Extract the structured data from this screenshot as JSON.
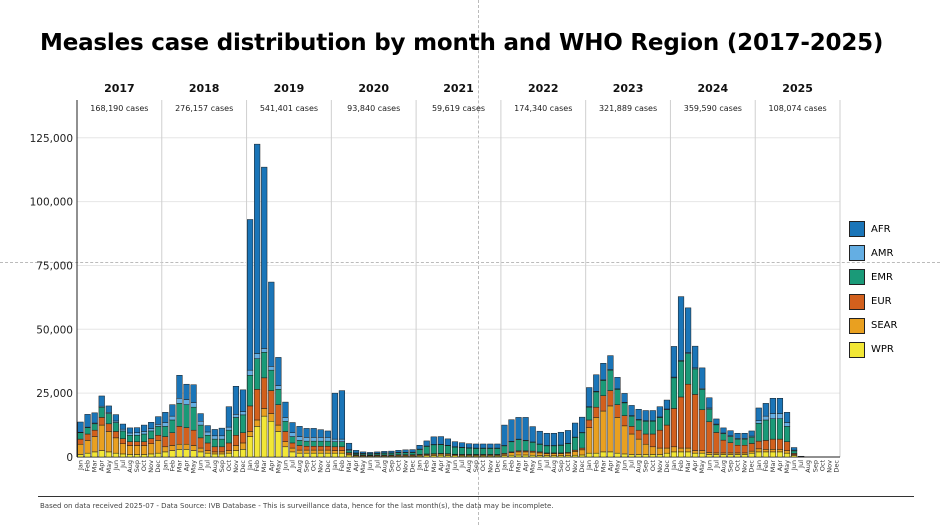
{
  "title": "Measles case distribution by month and WHO Region (2017-2025)",
  "footer": "Based on data received 2025-07 - Data Source: IVB Database - This is surveillance data, hence for the last month(s), the data may be incomplete.",
  "colors": {
    "AFR": "#1a75b8",
    "AMR": "#64aee3",
    "EMR": "#1a9a78",
    "EUR": "#d2601d",
    "SEAR": "#e9a020",
    "WPR": "#f2e736"
  },
  "chart_data": {
    "type": "bar",
    "stacked": true,
    "title": "Measles case distribution by month and WHO Region (2017-2025)",
    "xlabel": "",
    "ylabel": "",
    "ylim": [
      0,
      130000
    ],
    "yticks": [
      0,
      25000,
      50000,
      75000,
      100000,
      125000
    ],
    "ytick_labels": [
      "0",
      "25,000",
      "50,000",
      "75,000",
      "100,000",
      "125,000"
    ],
    "grid": true,
    "legend_position": "right",
    "month_labels": [
      "Jan",
      "Feb",
      "Mar",
      "Apr",
      "May",
      "Jun",
      "Jul",
      "Aug",
      "Sep",
      "Oct",
      "Nov",
      "Dec"
    ],
    "years": [
      {
        "year": "2017",
        "total": "168,190 cases"
      },
      {
        "year": "2018",
        "total": "276,157 cases"
      },
      {
        "year": "2019",
        "total": "541,401 cases"
      },
      {
        "year": "2020",
        "total": "93,840 cases"
      },
      {
        "year": "2021",
        "total": "59,619 cases"
      },
      {
        "year": "2022",
        "total": "174,340 cases"
      },
      {
        "year": "2023",
        "total": "321,889 cases"
      },
      {
        "year": "2024",
        "total": "359,590 cases"
      },
      {
        "year": "2025",
        "total": "108,074 cases"
      }
    ],
    "series_order": [
      "WPR",
      "SEAR",
      "EUR",
      "EMR",
      "AMR",
      "AFR"
    ],
    "legend_order": [
      "AFR",
      "AMR",
      "EMR",
      "EUR",
      "SEAR",
      "WPR"
    ],
    "series": {
      "WPR": [
        1000,
        1500,
        2000,
        2500,
        2000,
        1500,
        1200,
        1000,
        1000,
        1000,
        1200,
        1500,
        2000,
        2500,
        3000,
        3000,
        2500,
        2000,
        1500,
        1200,
        1200,
        1500,
        2500,
        3000,
        8000,
        12000,
        16000,
        14000,
        10000,
        4000,
        2000,
        1500,
        1500,
        1500,
        1500,
        1500,
        1500,
        1500,
        800,
        400,
        300,
        300,
        300,
        300,
        300,
        300,
        300,
        300,
        400,
        500,
        600,
        700,
        600,
        500,
        400,
        400,
        400,
        400,
        400,
        400,
        500,
        700,
        800,
        800,
        700,
        600,
        500,
        500,
        500,
        500,
        700,
        800,
        1500,
        1500,
        2000,
        2000,
        1500,
        1200,
        1000,
        1000,
        1000,
        1000,
        1000,
        1500,
        2000,
        2000,
        2000,
        1500,
        1500,
        1000,
        1000,
        1000,
        1000,
        1000,
        1000,
        1500,
        2000,
        2000,
        2000,
        2000,
        1500,
        600,
        0,
        0,
        0,
        0,
        0,
        0
      ],
      "SEAR": [
        4000,
        5000,
        6000,
        10000,
        8000,
        6000,
        4000,
        3500,
        3500,
        3500,
        4000,
        5000,
        2000,
        2000,
        2000,
        2000,
        2000,
        1500,
        1000,
        800,
        800,
        1000,
        2000,
        2500,
        2000,
        2500,
        3000,
        3000,
        2500,
        2000,
        1500,
        1200,
        1200,
        1200,
        1200,
        1200,
        1000,
        1000,
        400,
        200,
        200,
        200,
        200,
        200,
        200,
        300,
        300,
        300,
        400,
        500,
        500,
        500,
        500,
        400,
        400,
        400,
        400,
        400,
        400,
        400,
        600,
        1000,
        1200,
        1200,
        1200,
        1000,
        800,
        800,
        800,
        1000,
        1500,
        2000,
        10000,
        14000,
        16000,
        18000,
        14000,
        11000,
        8000,
        6000,
        4000,
        3000,
        2500,
        2000,
        2000,
        1500,
        1500,
        1000,
        1000,
        800,
        600,
        600,
        600,
        600,
        600,
        800,
        1200,
        1000,
        1000,
        1000,
        1000,
        300,
        0,
        0,
        0,
        0,
        0,
        0
      ],
      "EUR": [
        2000,
        2500,
        2500,
        3000,
        3000,
        2500,
        2000,
        1500,
        1500,
        1500,
        2000,
        2000,
        4000,
        5000,
        7000,
        6500,
        6000,
        4000,
        3000,
        2000,
        2000,
        3000,
        4000,
        4000,
        10000,
        12000,
        12000,
        9000,
        8000,
        4000,
        2000,
        1800,
        1500,
        1500,
        1500,
        1500,
        1500,
        1500,
        500,
        300,
        300,
        200,
        300,
        300,
        300,
        300,
        300,
        300,
        200,
        200,
        200,
        200,
        200,
        200,
        200,
        200,
        200,
        200,
        200,
        200,
        300,
        300,
        400,
        400,
        400,
        400,
        300,
        300,
        300,
        300,
        500,
        700,
        3000,
        4000,
        6000,
        6000,
        5000,
        4000,
        3000,
        3500,
        4000,
        5000,
        7000,
        9000,
        15000,
        20000,
        25000,
        22000,
        16000,
        12000,
        8000,
        5000,
        4000,
        3000,
        3000,
        3000,
        3000,
        3500,
        4000,
        4000,
        3500,
        500,
        0,
        0,
        0,
        0,
        0,
        0
      ],
      "EMR": [
        2500,
        2500,
        2500,
        4000,
        4000,
        3500,
        3000,
        2500,
        2500,
        3000,
        3000,
        3500,
        4000,
        5000,
        9000,
        9000,
        9000,
        5000,
        3000,
        3000,
        3000,
        5000,
        7000,
        7000,
        12000,
        12000,
        10000,
        8000,
        6000,
        4000,
        2500,
        2000,
        2000,
        2000,
        2000,
        2000,
        2000,
        2000,
        800,
        500,
        500,
        500,
        600,
        700,
        700,
        800,
        800,
        900,
        2000,
        3000,
        3500,
        3500,
        3200,
        2800,
        2700,
        2500,
        2400,
        2400,
        2400,
        2400,
        3000,
        4000,
        4500,
        4000,
        3500,
        3000,
        2800,
        2800,
        3000,
        3500,
        5000,
        6000,
        5000,
        6000,
        6000,
        8000,
        6000,
        5000,
        4000,
        4000,
        5000,
        5000,
        5000,
        6000,
        12000,
        14000,
        12000,
        10000,
        8000,
        5000,
        3000,
        2500,
        2400,
        2400,
        2400,
        2500,
        7000,
        8000,
        8000,
        8000,
        6000,
        1000,
        200,
        0,
        0,
        0,
        0,
        0
      ],
      "AMR": [
        200,
        200,
        300,
        400,
        500,
        600,
        700,
        900,
        1000,
        1000,
        900,
        800,
        1500,
        1500,
        2000,
        2000,
        1800,
        1500,
        1300,
        1300,
        1300,
        1200,
        1200,
        1300,
        2000,
        2000,
        1500,
        1500,
        1500,
        1500,
        1500,
        1500,
        1500,
        1500,
        1500,
        1500,
        1000,
        1000,
        400,
        200,
        100,
        100,
        100,
        100,
        100,
        100,
        100,
        100,
        100,
        100,
        100,
        100,
        100,
        100,
        100,
        100,
        100,
        100,
        100,
        100,
        100,
        100,
        100,
        100,
        100,
        100,
        100,
        100,
        100,
        100,
        100,
        100,
        200,
        200,
        200,
        200,
        200,
        200,
        200,
        200,
        200,
        200,
        200,
        300,
        300,
        300,
        400,
        400,
        400,
        400,
        300,
        300,
        300,
        300,
        300,
        400,
        1000,
        1500,
        2000,
        2000,
        1500,
        300,
        0,
        0,
        0,
        0,
        0,
        0
      ],
      "AFR": [
        4000,
        5000,
        4000,
        4000,
        2500,
        2500,
        2000,
        2000,
        2000,
        2500,
        2500,
        3000,
        4000,
        4500,
        9000,
        6000,
        7000,
        3000,
        2500,
        2500,
        3000,
        8000,
        11000,
        8500,
        59000,
        82000,
        71000,
        33000,
        11000,
        6000,
        4000,
        4000,
        3500,
        3500,
        3000,
        2500,
        18000,
        19000,
        2500,
        1000,
        600,
        500,
        500,
        600,
        700,
        800,
        1000,
        1000,
        1500,
        2000,
        3000,
        3000,
        2500,
        2000,
        1800,
        1600,
        1600,
        1600,
        1600,
        1600,
        8000,
        8500,
        8500,
        9000,
        6000,
        5000,
        4800,
        4800,
        5000,
        5000,
        5500,
        6000,
        7500,
        6500,
        6500,
        5500,
        4500,
        3500,
        4000,
        4000,
        4000,
        4000,
        4000,
        3500,
        12000,
        25000,
        17500,
        8500,
        8000,
        4000,
        2000,
        2000,
        2000,
        2000,
        2000,
        2000,
        5000,
        5000,
        6000,
        6000,
        4000,
        1000,
        100,
        0,
        0,
        0,
        0,
        0
      ]
    }
  }
}
